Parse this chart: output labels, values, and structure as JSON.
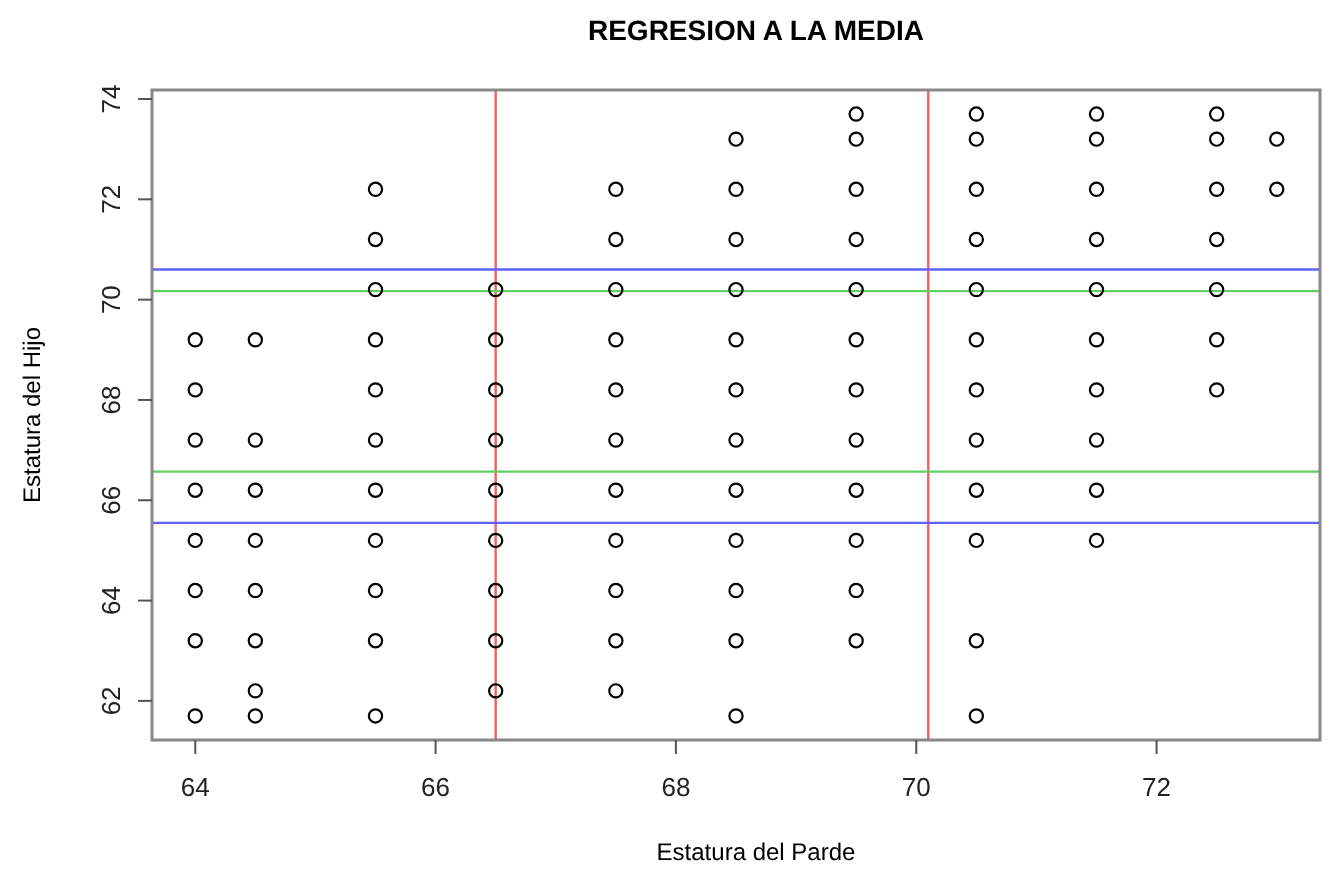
{
  "chart_data": {
    "type": "scatter",
    "title": "REGRESION A LA MEDIA",
    "xlabel": "Estatura del Parde",
    "ylabel": "Estatura del Hijo",
    "xlim": [
      63.64,
      73.36
    ],
    "ylim": [
      61.22,
      74.18
    ],
    "xticks": [
      64,
      66,
      68,
      70,
      72
    ],
    "yticks": [
      62,
      64,
      66,
      68,
      70,
      72,
      74
    ],
    "marker": "circle",
    "grid": false,
    "series": [
      {
        "color": "#000000",
        "x": [
          64,
          64,
          64,
          64,
          64,
          64,
          64,
          64,
          64.5,
          64.5,
          64.5,
          64.5,
          64.5,
          64.5,
          64.5,
          64.5,
          65.5,
          65.5,
          65.5,
          65.5,
          65.5,
          65.5,
          65.5,
          65.5,
          65.5,
          65.5,
          65.5,
          66.5,
          66.5,
          66.5,
          66.5,
          66.5,
          66.5,
          66.5,
          66.5,
          66.5,
          67.5,
          67.5,
          67.5,
          67.5,
          67.5,
          67.5,
          67.5,
          67.5,
          67.5,
          67.5,
          67.5,
          68.5,
          68.5,
          68.5,
          68.5,
          68.5,
          68.5,
          68.5,
          68.5,
          68.5,
          68.5,
          68.5,
          68.5,
          69.5,
          69.5,
          69.5,
          69.5,
          69.5,
          69.5,
          69.5,
          69.5,
          69.5,
          69.5,
          69.5,
          69.5,
          70.5,
          70.5,
          70.5,
          70.5,
          70.5,
          70.5,
          70.5,
          70.5,
          70.5,
          70.5,
          70.5,
          70.5,
          71.5,
          71.5,
          71.5,
          71.5,
          71.5,
          71.5,
          71.5,
          71.5,
          71.5,
          71.5,
          72.5,
          72.5,
          72.5,
          72.5,
          72.5,
          72.5,
          72.5,
          73,
          73
        ],
        "values": [
          69.2,
          68.2,
          67.2,
          66.2,
          65.2,
          64.2,
          63.2,
          61.7,
          69.2,
          67.2,
          66.2,
          65.2,
          64.2,
          63.2,
          62.2,
          61.7,
          72.2,
          71.2,
          70.2,
          69.2,
          68.2,
          67.2,
          66.2,
          65.2,
          64.2,
          63.2,
          61.7,
          70.2,
          69.2,
          68.2,
          67.2,
          66.2,
          65.2,
          64.2,
          63.2,
          62.2,
          72.2,
          71.2,
          70.2,
          69.2,
          68.2,
          67.2,
          66.2,
          65.2,
          64.2,
          63.2,
          62.2,
          73.2,
          72.2,
          71.2,
          70.2,
          69.2,
          68.2,
          67.2,
          66.2,
          65.2,
          64.2,
          63.2,
          61.7,
          73.7,
          73.2,
          72.2,
          71.2,
          70.2,
          69.2,
          68.2,
          67.2,
          66.2,
          65.2,
          64.2,
          63.2,
          73.7,
          73.2,
          72.2,
          71.2,
          70.2,
          69.2,
          68.2,
          67.2,
          66.2,
          65.2,
          63.2,
          61.7,
          73.7,
          73.2,
          72.2,
          71.2,
          70.2,
          69.2,
          68.2,
          67.2,
          66.2,
          65.2,
          73.7,
          73.2,
          72.2,
          71.2,
          70.2,
          69.2,
          68.2,
          73.2,
          72.2
        ]
      }
    ],
    "ref_lines": [
      {
        "axis": "x",
        "value": 66.5,
        "color": "#f06060"
      },
      {
        "axis": "x",
        "value": 70.1,
        "color": "#f06060"
      },
      {
        "axis": "y",
        "value": 70.6,
        "color": "#6060ff"
      },
      {
        "axis": "y",
        "value": 65.55,
        "color": "#6060ff"
      },
      {
        "axis": "y",
        "value": 70.17,
        "color": "#60d060"
      },
      {
        "axis": "y",
        "value": 66.57,
        "color": "#60d060"
      }
    ]
  }
}
